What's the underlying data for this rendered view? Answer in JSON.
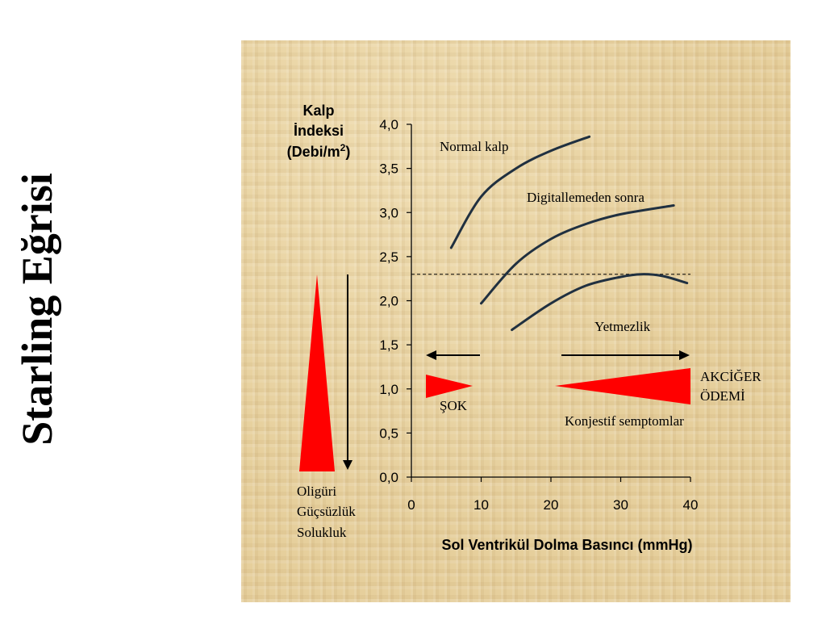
{
  "page": {
    "side_title": "Starling Eğrisi"
  },
  "chart_data": {
    "type": "line",
    "ylabel_lines": [
      "Kalp",
      "İndeksi",
      "(Debi/m",
      ")"
    ],
    "ylabel_sup": "2",
    "xlabel": "Sol Ventrikül Dolma Basıncı (mmHg)",
    "xlim": [
      0,
      40
    ],
    "ylim": [
      0,
      4
    ],
    "x_ticks": [
      "0",
      "10",
      "20",
      "30",
      "40"
    ],
    "y_ticks": [
      "0,0",
      "0,5",
      "1,0",
      "1,5",
      "2,0",
      "2,5",
      "3,0",
      "3,5",
      "4,0"
    ],
    "threshold_y": 2.3,
    "series": [
      {
        "name": "Normal kalp",
        "x": [
          5.7,
          10,
          15,
          20,
          25.5
        ],
        "y": [
          2.6,
          3.18,
          3.5,
          3.7,
          3.86
        ]
      },
      {
        "name": "Digitallemeden sonra",
        "x": [
          10,
          15,
          20,
          25,
          30,
          37.6
        ],
        "y": [
          1.97,
          2.42,
          2.7,
          2.87,
          2.98,
          3.08
        ]
      },
      {
        "name": "Yetmezlik",
        "x": [
          14.4,
          20,
          25,
          30,
          33,
          36,
          39.5
        ],
        "y": [
          1.67,
          1.97,
          2.17,
          2.27,
          2.3,
          2.28,
          2.2
        ]
      }
    ],
    "annotations": {
      "normal_label": "Normal kalp",
      "digital_label": "Digitallemeden sonra",
      "failure_label": "Yetmezlik",
      "shock_label": "ŞOK",
      "edema_line1": "AKCİĞER",
      "edema_line2": "ÖDEMİ",
      "congestive_label": "Konjestif semptomlar",
      "symptom_line1": "Oligüri",
      "symptom_line2": "Güçsüzlük",
      "symptom_line3": "Solukluk"
    },
    "colors": {
      "curve": "#203040",
      "wedge": "#ff0000",
      "arrow": "#000000",
      "panel": "#e6cf9c"
    }
  }
}
